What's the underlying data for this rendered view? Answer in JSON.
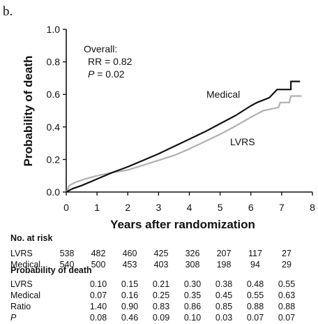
{
  "panel_label": "b.",
  "chart_data": {
    "type": "line",
    "xlabel": "Years after randomization",
    "ylabel": "Probability of death",
    "xlim": [
      0,
      8
    ],
    "ylim": [
      0,
      1.0
    ],
    "x_ticks": [
      0,
      1,
      2,
      3,
      4,
      5,
      6,
      7,
      8
    ],
    "x_tick_labels": [
      "0",
      "1",
      "2",
      "3",
      "4",
      "5",
      "6",
      "7",
      "8"
    ],
    "y_ticks": [
      0,
      0.2,
      0.4,
      0.6,
      0.8,
      1.0
    ],
    "y_tick_labels": [
      "0.0",
      "0.2",
      "0.4",
      "0.6",
      "0.8",
      "1.0"
    ],
    "grid": false,
    "annotation": {
      "line1": "Overall:",
      "line2": "RR = 0.82",
      "line3_italic": "P",
      "line3_rest": " = 0.02"
    },
    "series": [
      {
        "name": "Medical",
        "color": "#111111",
        "points": [
          [
            0,
            0
          ],
          [
            0.2,
            0.02
          ],
          [
            0.5,
            0.04
          ],
          [
            1.0,
            0.08
          ],
          [
            1.5,
            0.12
          ],
          [
            2.0,
            0.155
          ],
          [
            2.5,
            0.195
          ],
          [
            3.0,
            0.235
          ],
          [
            3.5,
            0.28
          ],
          [
            4.0,
            0.325
          ],
          [
            4.5,
            0.37
          ],
          [
            5.0,
            0.42
          ],
          [
            5.5,
            0.47
          ],
          [
            6.0,
            0.53
          ],
          [
            6.2,
            0.55
          ],
          [
            6.6,
            0.58
          ],
          [
            6.85,
            0.63
          ],
          [
            7.3,
            0.63
          ],
          [
            7.3,
            0.68
          ],
          [
            7.6,
            0.68
          ]
        ]
      },
      {
        "name": "LVRS",
        "color": "#b0b0b0",
        "points": [
          [
            0,
            0
          ],
          [
            0.1,
            0.04
          ],
          [
            0.3,
            0.06
          ],
          [
            0.6,
            0.08
          ],
          [
            1.0,
            0.1
          ],
          [
            1.5,
            0.12
          ],
          [
            2.0,
            0.135
          ],
          [
            2.5,
            0.165
          ],
          [
            3.0,
            0.195
          ],
          [
            3.5,
            0.225
          ],
          [
            4.0,
            0.265
          ],
          [
            4.5,
            0.31
          ],
          [
            5.0,
            0.355
          ],
          [
            5.5,
            0.405
          ],
          [
            6.0,
            0.46
          ],
          [
            6.4,
            0.5
          ],
          [
            6.9,
            0.52
          ],
          [
            6.95,
            0.55
          ],
          [
            7.25,
            0.55
          ],
          [
            7.3,
            0.59
          ],
          [
            7.65,
            0.59
          ]
        ]
      }
    ],
    "series_labels": [
      {
        "series": "Medical",
        "text": "Medical"
      },
      {
        "series": "LVRS",
        "text": "LVRS"
      }
    ]
  },
  "table": {
    "risk_header": "No. at risk",
    "risk_rows": [
      {
        "label": "LVRS",
        "values": [
          "538",
          "482",
          "460",
          "425",
          "326",
          "207",
          "117",
          "27"
        ]
      },
      {
        "label": "Medical",
        "values": [
          "540",
          "500",
          "453",
          "403",
          "308",
          "198",
          "94",
          "29"
        ]
      }
    ],
    "prob_header": "Probability of death",
    "prob_rows": [
      {
        "label": "LVRS",
        "italic": false,
        "values": [
          "0.10",
          "0.15",
          "0.21",
          "0.30",
          "0.38",
          "0.48",
          "0.55"
        ]
      },
      {
        "label": "Medical",
        "italic": false,
        "values": [
          "0.07",
          "0.16",
          "0.25",
          "0.35",
          "0.45",
          "0.55",
          "0.63"
        ]
      },
      {
        "label": "Ratio",
        "italic": false,
        "values": [
          "1.40",
          "0.90",
          "0.83",
          "0.86",
          "0.85",
          "0.88",
          "0.88"
        ]
      },
      {
        "label": "P",
        "italic": true,
        "values": [
          "0.08",
          "0.46",
          "0.09",
          "0.10",
          "0.03",
          "0.07",
          "0.07"
        ]
      }
    ]
  }
}
